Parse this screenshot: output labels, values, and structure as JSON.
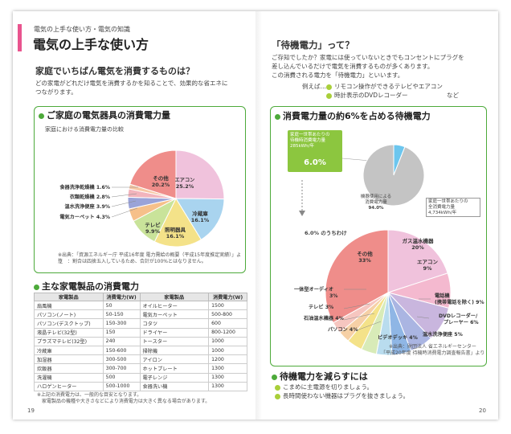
{
  "left": {
    "breadcrumb": "電気の上手な使い方・電気の知識",
    "title": "電気の上手な使い方",
    "heading": "家庭でいちばん電気を消費するものは？",
    "intro1": "どの家電がどれだけ電気を消費するかを知ることで、効果的な省エネに",
    "intro2": "つながります。",
    "panel_title": "ご家庭の電気器具の消費電力量",
    "chart_caption": "家庭における消費電力量の比較",
    "source1": "※出典：「資源エネルギー庁 平成16年度 電力需給の概要（平成15年度推定実績）」より",
    "source2": "注　：割合は四捨五入しているため、合計が100%とはなりません。",
    "table_title": "主な家電製品の消費電力",
    "table_headers": [
      "家電製品",
      "消費電力(W)",
      "家電製品",
      "消費電力(W)"
    ],
    "table_left": [
      [
        "扇風機",
        "50"
      ],
      [
        "パソコン(ノート)",
        "50-150"
      ],
      [
        "パソコン(デスクトップ)",
        "150-300"
      ],
      [
        "液晶テレビ(32型)",
        "150"
      ],
      [
        "プラズマテレビ(32型)",
        "240"
      ],
      [
        "冷蔵庫",
        "150-600"
      ],
      [
        "加湿器",
        "300-500"
      ],
      [
        "炊飯器",
        "300-700"
      ],
      [
        "洗濯機",
        "500"
      ],
      [
        "ハロゲンヒーター",
        "500-1000"
      ]
    ],
    "table_right": [
      [
        "オイルヒーター",
        "1500"
      ],
      [
        "電気カーペット",
        "500-800"
      ],
      [
        "コタツ",
        "600"
      ],
      [
        "ドライヤー",
        "800-1200"
      ],
      [
        "トースター",
        "1000"
      ],
      [
        "掃除機",
        "1000"
      ],
      [
        "アイロン",
        "1200"
      ],
      [
        "ホットプレート",
        "1300"
      ],
      [
        "電子レンジ",
        "1300"
      ],
      [
        "食器洗い機",
        "1300"
      ]
    ],
    "note1": "※上記の消費電力は、一般的な目安となります。",
    "note2": "家電製品の機種や大きさなどにより消費電力は大きく異なる場合があります。",
    "page": "19"
  },
  "right": {
    "title": "「待機電力」って？",
    "text1": "ご存知でしたか？家電には使っていないときでもコンセントにプラグを",
    "text2": "差し込んでいるだけで電気を消費するものが多くあります。",
    "text3": "この消費される電力を「待機電力」といいます。",
    "example_label": "例えば…",
    "example1": "リモコン操作ができるテレビやエアコン",
    "example2": "時計表示のDVDレコーダー",
    "example2_tail": "など",
    "panel_title": "消費電力量の約6%を占める待機電力",
    "standby_box_text": [
      "家庭一世帯あたりの",
      "待機時消費電力量",
      "285kWh/年"
    ],
    "standby_pct": "6.0%",
    "usage_label": [
      "機器使用による",
      "消費電力量",
      "94.0%"
    ],
    "total_box_text": [
      "家庭一世帯あたりの",
      "全消費電力量",
      "4,734kWh/年"
    ],
    "breakdown_label": "6.0% のうちわけ",
    "source1": "※出典：財団法人 省エネルギーセンター",
    "source2": "「平成20年度 待機時消費電力調査報告書」より",
    "reduce_title": "待機電力を減らすには",
    "reduce1": "こまめに主電源を切りましょう。",
    "reduce2": "長時間使わない機器はプラグを抜きましょう。",
    "page": "20"
  },
  "chart_data": [
    {
      "type": "pie",
      "title": "家庭における消費電力量の比較",
      "labels": [
        "エアコン",
        "冷蔵庫",
        "照明器具",
        "テレビ",
        "電気カーペット",
        "温水洗浄便座",
        "衣類乾燥機",
        "食器洗浄乾燥機",
        "その他"
      ],
      "values": [
        25.2,
        16.1,
        16.1,
        9.9,
        4.3,
        3.9,
        2.8,
        1.6,
        20.2
      ],
      "colors": [
        "#f0c2dc",
        "#a9d4ef",
        "#f4e289",
        "#c9e39a",
        "#f6c08a",
        "#9aa3d8",
        "#f2b4bc",
        "#f6c6a3",
        "#ef8d8a"
      ]
    },
    {
      "type": "pie",
      "labels": [
        "待機時消費電力量",
        "機器使用による消費電力量"
      ],
      "values": [
        6.0,
        94.0
      ],
      "colors": [
        "#6cc6ee",
        "#c4c4c4"
      ]
    },
    {
      "type": "pie",
      "title": "6.0% のうちわけ",
      "labels": [
        "ガス温水機器",
        "エアコン",
        "電話機(携帯電話を除く)",
        "DVDレコーダー/プレーヤー",
        "温水洗浄便座",
        "ビデオデッキ",
        "パソコン",
        "石油温水機器",
        "テレビ",
        "一体型オーディオ",
        "その他"
      ],
      "values": [
        20,
        9,
        9,
        6,
        5,
        4,
        4,
        4,
        3,
        3,
        33
      ],
      "colors": [
        "#f0c2dc",
        "#f4b9cf",
        "#c9b6de",
        "#aab5e2",
        "#8fb6e5",
        "#b9dcee",
        "#d8ebb8",
        "#f4e289",
        "#f6d0a6",
        "#f6c6c0",
        "#ef8d8a"
      ]
    }
  ]
}
